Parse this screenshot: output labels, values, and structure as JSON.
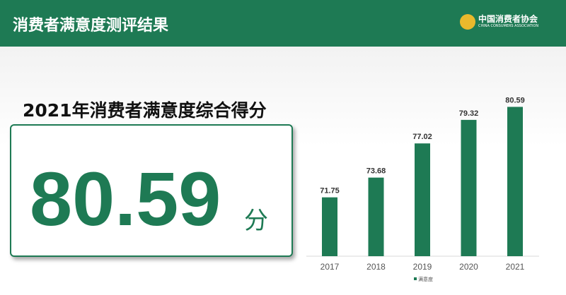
{
  "header": {
    "title": "消费者满意度测评结果",
    "logo_cn": "中国消费者协会",
    "logo_en": "CHINA CONSUMERS ASSOCIATION"
  },
  "main": {
    "subtitle": "2021年消费者满意度综合得分",
    "score": "80.59",
    "unit": "分"
  },
  "colors": {
    "brand": "#1e7a54",
    "seal": "#e9b92c"
  },
  "chart_data": {
    "type": "bar",
    "categories": [
      "2017",
      "2018",
      "2019",
      "2020",
      "2021"
    ],
    "series": [
      {
        "name": "满意度",
        "values": [
          71.75,
          73.68,
          77.02,
          79.32,
          80.59
        ]
      }
    ],
    "data_labels": [
      "71.75",
      "73.68",
      "77.02",
      "79.32",
      "80.59"
    ],
    "ylim": [
      66,
      82
    ],
    "grid": false,
    "legend": "bottom"
  }
}
